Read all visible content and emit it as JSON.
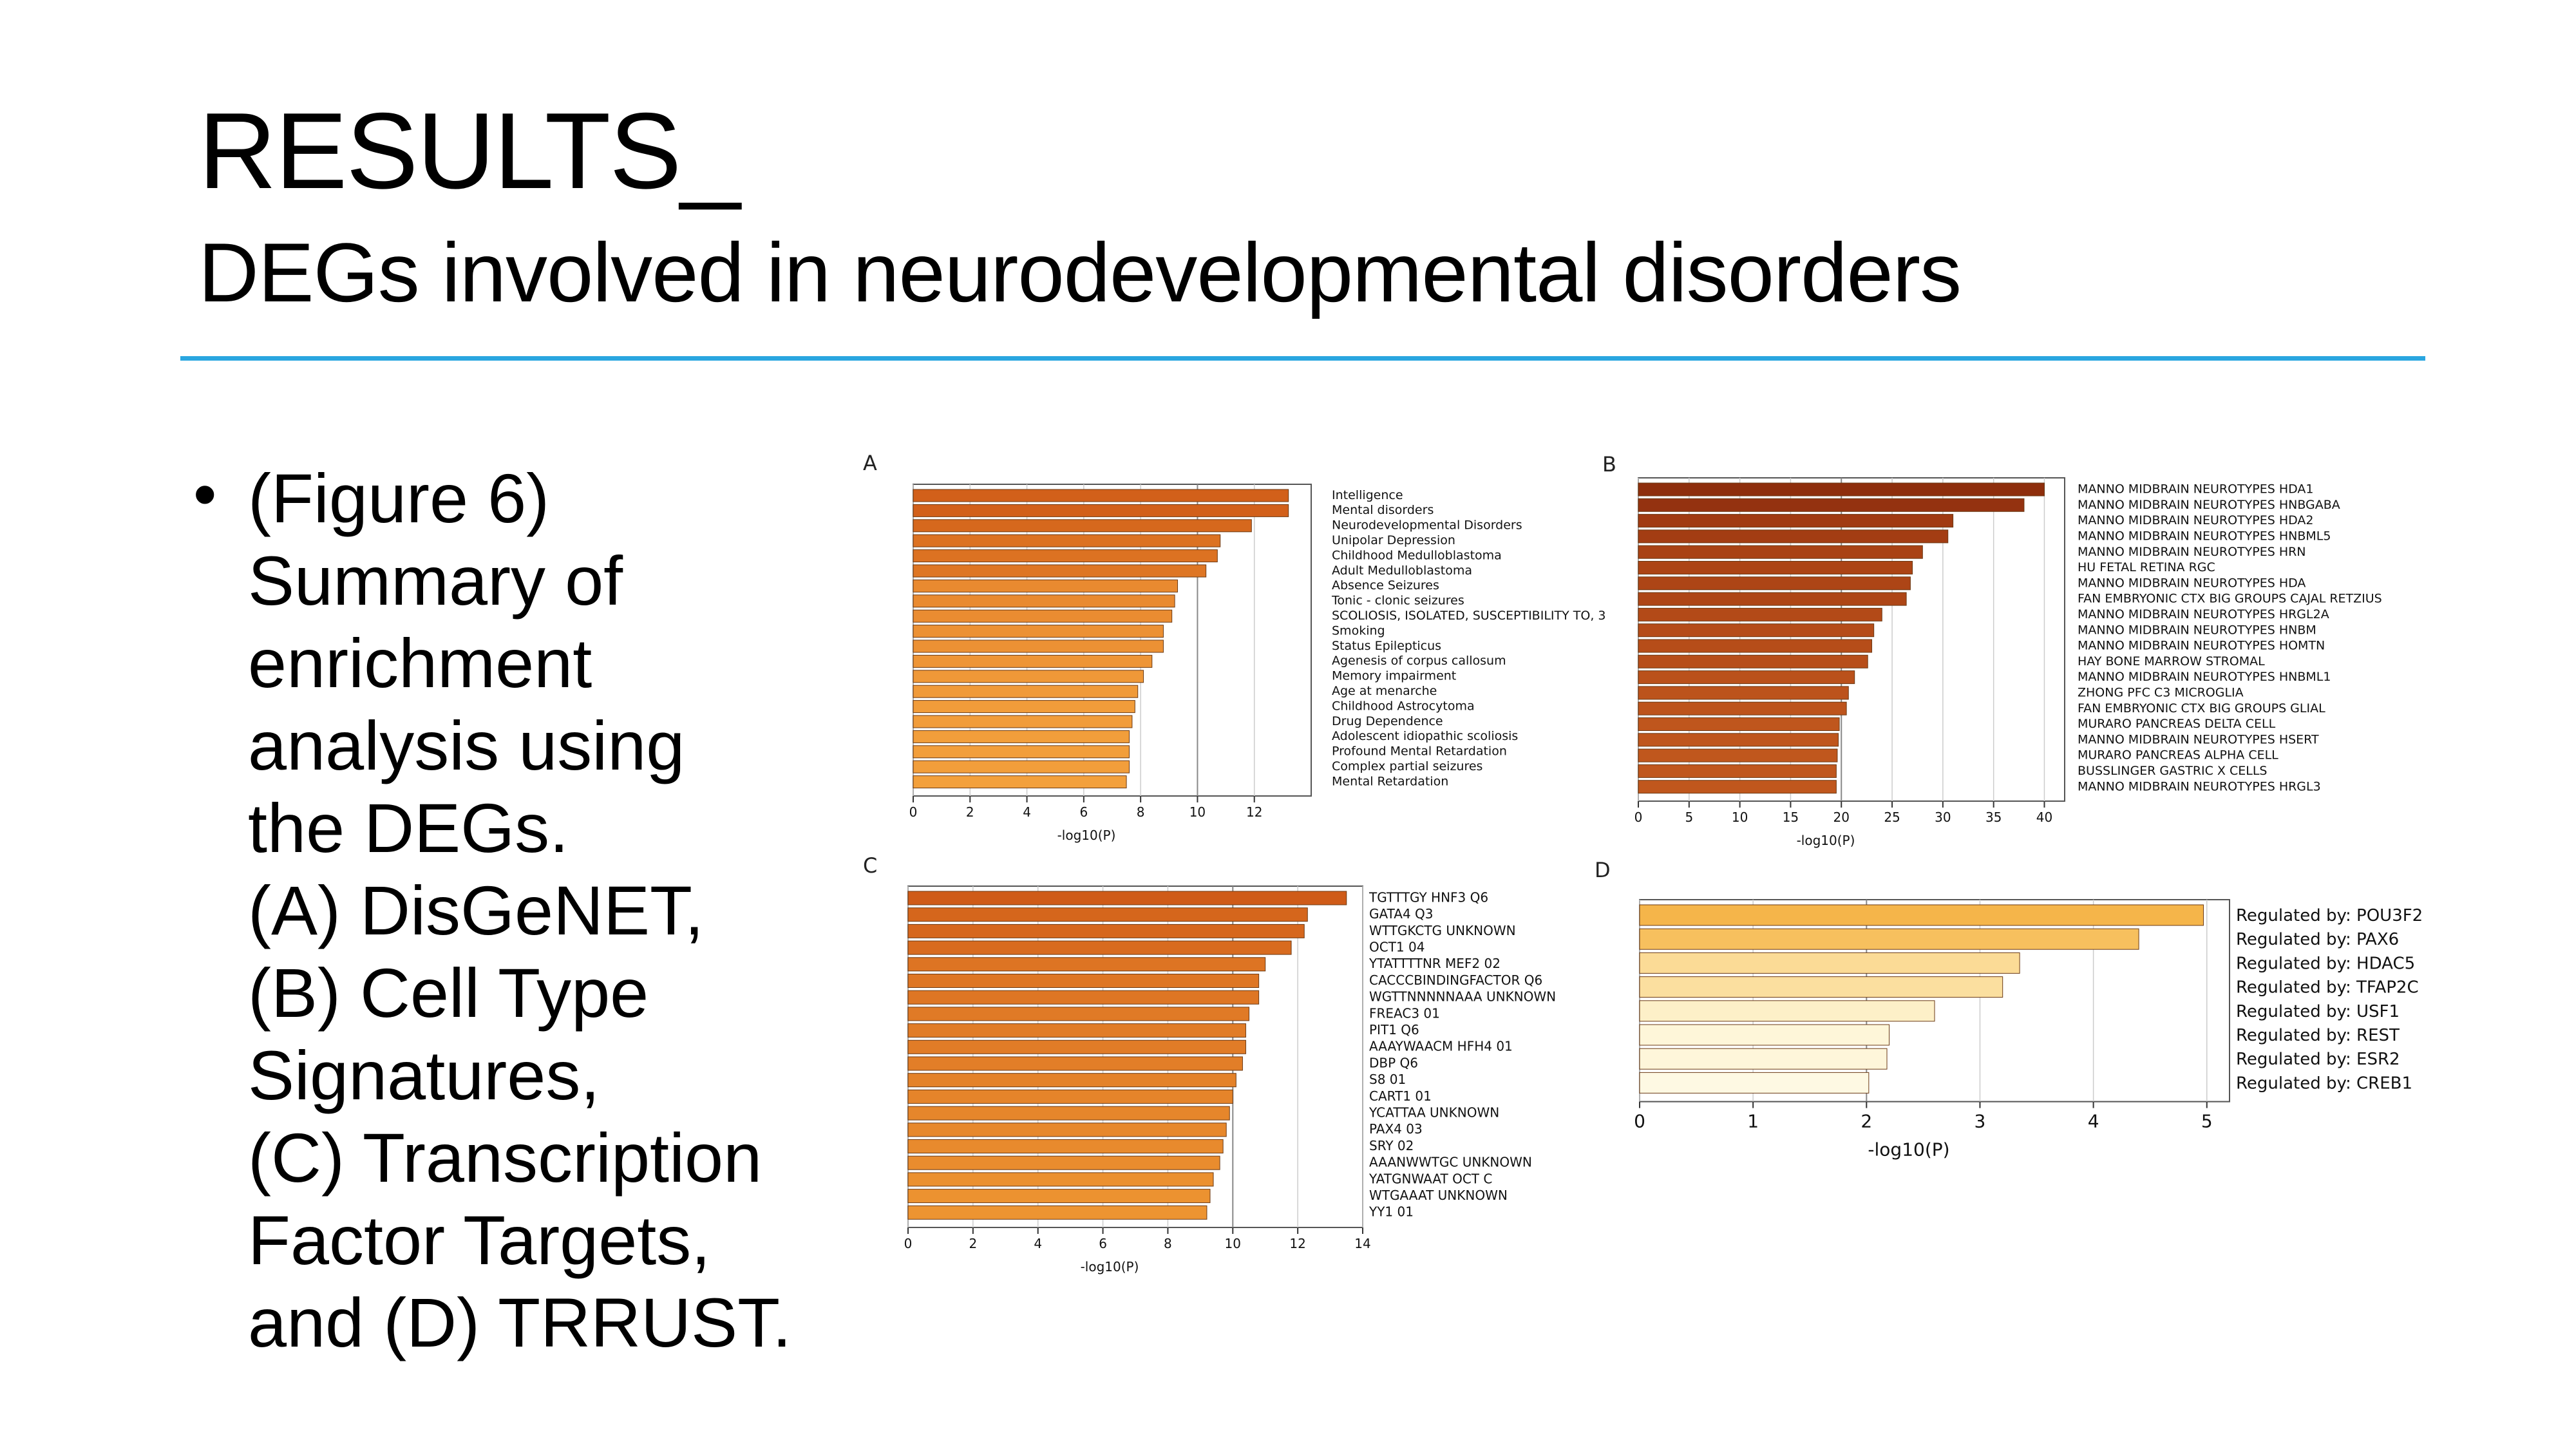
{
  "slide": {
    "title": "RESULTS_",
    "subtitle": "DEGs involved in neurodevelopmental disorders",
    "bullet_symbol": "•",
    "body_lines": [
      "(Figure 6)",
      "Summary of",
      "enrichment",
      "analysis using",
      "the DEGs.",
      "(A) DisGeNET,",
      "(B) Cell Type",
      "Signatures,",
      "(C) Transcription",
      "Factor Targets,",
      "and (D) TRRUST."
    ]
  },
  "colors": {
    "accent_rule": "#2aa6e0",
    "text": "#000000"
  },
  "chart_data": [
    {
      "panel": "A",
      "type": "bar",
      "orientation": "horizontal",
      "xlabel": "-log10(P)",
      "xlim": [
        0,
        14
      ],
      "xticks": [
        0,
        2,
        4,
        6,
        8,
        10,
        12
      ],
      "threshold": 10,
      "categories": [
        "Intelligence",
        "Mental disorders",
        "Neurodevelopmental Disorders",
        "Unipolar Depression",
        "Childhood Medulloblastoma",
        "Adult Medulloblastoma",
        "Absence Seizures",
        "Tonic - clonic seizures",
        "SCOLIOSIS, ISOLATED, SUSCEPTIBILITY TO, 3",
        "Smoking",
        "Status Epilepticus",
        "Agenesis of corpus callosum",
        "Memory impairment",
        "Age at menarche",
        "Childhood Astrocytoma",
        "Drug Dependence",
        "Adolescent idiopathic scoliosis",
        "Profound Mental Retardation",
        "Complex partial seizures",
        "Mental Retardation"
      ],
      "values": [
        13.2,
        13.2,
        11.9,
        10.8,
        10.7,
        10.3,
        9.3,
        9.2,
        9.1,
        8.8,
        8.8,
        8.4,
        8.1,
        7.9,
        7.8,
        7.7,
        7.6,
        7.6,
        7.6,
        7.5
      ],
      "colors": [
        "#d2601a",
        "#d2601a",
        "#d6681d",
        "#dc7222",
        "#dc7222",
        "#de7624",
        "#e98a30",
        "#e98a30",
        "#ea8c31",
        "#ec9134",
        "#ec9134",
        "#ee9536",
        "#ef9838",
        "#f09a39",
        "#f19c3a",
        "#f19c3a",
        "#f29e3b",
        "#f29e3b",
        "#f29e3b",
        "#f3a03c"
      ]
    },
    {
      "panel": "B",
      "type": "bar",
      "orientation": "horizontal",
      "xlabel": "-log10(P)",
      "xlim": [
        0,
        42
      ],
      "xticks": [
        0,
        5,
        10,
        15,
        20,
        25,
        30,
        35,
        40
      ],
      "threshold": 20,
      "categories": [
        "MANNO MIDBRAIN NEUROTYPES HDA1",
        "MANNO MIDBRAIN NEUROTYPES HNBGABA",
        "MANNO MIDBRAIN NEUROTYPES HDA2",
        "MANNO MIDBRAIN NEUROTYPES HNBML5",
        "MANNO MIDBRAIN NEUROTYPES HRN",
        "HU FETAL RETINA RGC",
        "MANNO MIDBRAIN NEUROTYPES HDA",
        "FAN EMBRYONIC CTX BIG GROUPS CAJAL RETZIUS",
        "MANNO MIDBRAIN NEUROTYPES HRGL2A",
        "MANNO MIDBRAIN NEUROTYPES HNBM",
        "MANNO MIDBRAIN NEUROTYPES HOMTN",
        "HAY BONE MARROW STROMAL",
        "MANNO MIDBRAIN NEUROTYPES HNBML1",
        "ZHONG PFC C3 MICROGLIA",
        "FAN EMBRYONIC CTX BIG GROUPS GLIAL",
        "MURARO PANCREAS DELTA CELL",
        "MANNO MIDBRAIN NEUROTYPES HSERT",
        "MURARO PANCREAS ALPHA CELL",
        "BUSSLINGER GASTRIC X CELLS",
        "MANNO MIDBRAIN NEUROTYPES HRGL3"
      ],
      "values": [
        40.0,
        38.0,
        31.0,
        30.5,
        28.0,
        27.0,
        26.8,
        26.4,
        24.0,
        23.2,
        23.0,
        22.6,
        21.3,
        20.7,
        20.5,
        19.8,
        19.7,
        19.6,
        19.5,
        19.5
      ],
      "colors": [
        "#8e2e0c",
        "#943210",
        "#a13b12",
        "#a33d13",
        "#a94214",
        "#ac4415",
        "#ad4516",
        "#ae4616",
        "#b34a18",
        "#b54c19",
        "#b64d19",
        "#b74e1a",
        "#ba511b",
        "#bc531c",
        "#bd541c",
        "#bf561d",
        "#bf561d",
        "#c0571d",
        "#c0571d",
        "#c0571d"
      ]
    },
    {
      "panel": "C",
      "type": "bar",
      "orientation": "horizontal",
      "xlabel": "-log10(P)",
      "xlim": [
        0,
        14
      ],
      "xticks": [
        0,
        2,
        4,
        6,
        8,
        10,
        12,
        14
      ],
      "threshold": 10,
      "categories": [
        "TGTTTGY HNF3 Q6",
        "GATA4 Q3",
        "WTTGKCTG UNKNOWN",
        "OCT1 04",
        "YTATTTTNR MEF2 02",
        "CACCCBINDINGFACTOR Q6",
        "WGTTNNNNNAAA UNKNOWN",
        "FREAC3 01",
        "PIT1 Q6",
        "AAAYWAACM HFH4 01",
        "DBP Q6",
        "S8 01",
        "CART1 01",
        "YCATTAA UNKNOWN",
        "PAX4 03",
        "SRY 02",
        "AAANWWTGC UNKNOWN",
        "YATGNWAAT OCT C",
        "WTGAAAT UNKNOWN",
        "YY1 01"
      ],
      "values": [
        13.5,
        12.3,
        12.2,
        11.8,
        11.0,
        10.8,
        10.8,
        10.5,
        10.4,
        10.4,
        10.3,
        10.1,
        10.0,
        9.9,
        9.8,
        9.7,
        9.6,
        9.4,
        9.3,
        9.2
      ],
      "colors": [
        "#cf5b18",
        "#d5661c",
        "#d6671d",
        "#d86b1f",
        "#dd7423",
        "#de7624",
        "#de7624",
        "#e07a26",
        "#e17c27",
        "#e17c27",
        "#e27e28",
        "#e48229",
        "#e5842a",
        "#e6862b",
        "#e7882c",
        "#e88a2d",
        "#e98c2e",
        "#eb902f",
        "#ec9230",
        "#ed9431"
      ]
    },
    {
      "panel": "D",
      "type": "bar",
      "orientation": "horizontal",
      "xlabel": "-log10(P)",
      "xlim": [
        0,
        5.2
      ],
      "xticks": [
        0,
        1,
        2,
        3,
        4,
        5
      ],
      "threshold": 2,
      "categories": [
        "Regulated by: POU3F2",
        "Regulated by: PAX6",
        "Regulated by: HDAC5",
        "Regulated by: TFAP2C",
        "Regulated by: USF1",
        "Regulated by: REST",
        "Regulated by: ESR2",
        "Regulated by: CREB1"
      ],
      "values": [
        4.97,
        4.4,
        3.35,
        3.2,
        2.6,
        2.2,
        2.18,
        2.02
      ],
      "colors": [
        "#f5b54a",
        "#f7c05e",
        "#fbdb96",
        "#fbdf9f",
        "#fdf0c8",
        "#fef6d9",
        "#fef6da",
        "#fef9e3"
      ]
    }
  ]
}
